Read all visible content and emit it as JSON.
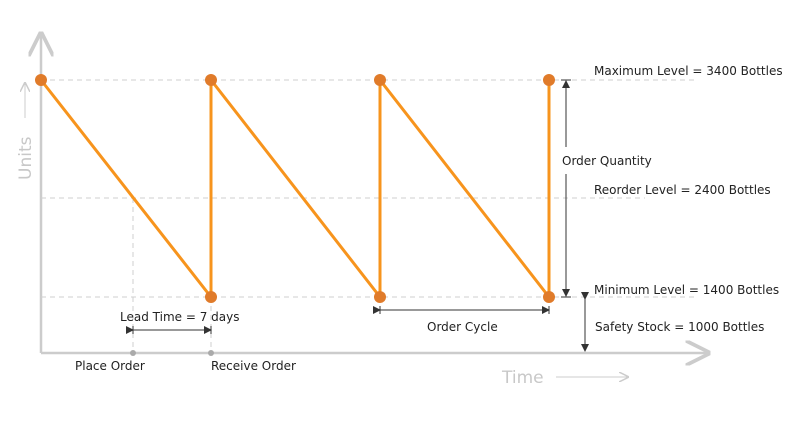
{
  "axes": {
    "y_label": "Units",
    "x_label": "Time"
  },
  "levels": {
    "maximum": "Maximum Level = 3400 Bottles",
    "reorder": "Reorder Level = 2400 Bottles",
    "minimum": "Minimum Level = 1400 Bottles",
    "safety_stock": "Safety Stock = 1000 Bottles"
  },
  "annotations": {
    "order_quantity": "Order Quantity",
    "lead_time": "Lead Time = 7 days",
    "order_cycle": "Order Cycle",
    "place_order": "Place Order",
    "receive_order": "Receive Order"
  },
  "colors": {
    "line": "#f7941d",
    "point": "#e07b2a",
    "axis": "#cccccc",
    "grid": "#cfcfcf"
  }
}
